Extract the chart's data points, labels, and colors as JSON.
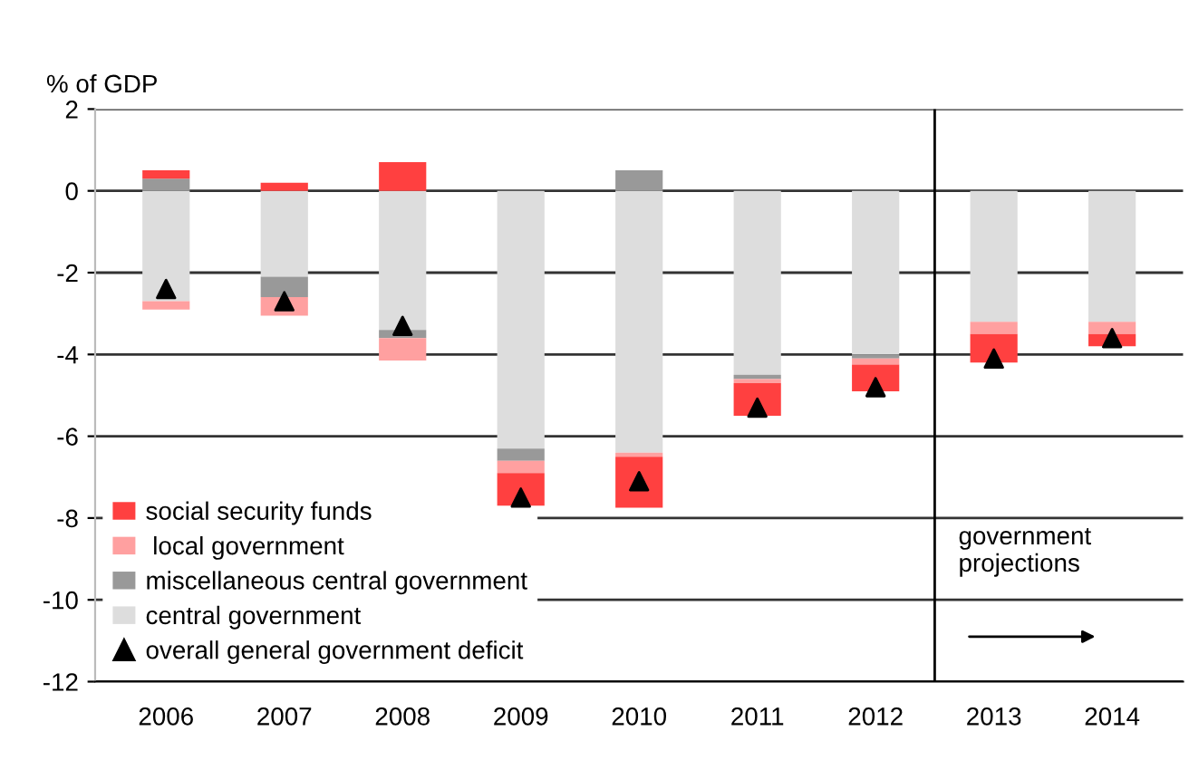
{
  "chart_data": {
    "type": "bar",
    "stacked": true,
    "ylabel": "% of GDP",
    "categories": [
      "2006",
      "2007",
      "2008",
      "2009",
      "2010",
      "2011",
      "2012",
      "2013",
      "2014"
    ],
    "series": [
      {
        "name": "central government",
        "color": "#dddddd",
        "values": [
          -2.7,
          -2.1,
          -3.4,
          -6.3,
          -6.4,
          -4.5,
          -4.0,
          -3.2,
          -3.2
        ]
      },
      {
        "name": "miscellaneous central government",
        "color": "#999999",
        "values": [
          0.3,
          -0.5,
          -0.2,
          -0.3,
          0.5,
          -0.1,
          -0.1,
          null,
          null
        ]
      },
      {
        "name": " local government",
        "color": "#ffa0a0",
        "values": [
          -0.2,
          -0.45,
          -0.55,
          -0.3,
          -0.1,
          -0.1,
          -0.15,
          -0.3,
          -0.3
        ]
      },
      {
        "name": "social security funds",
        "color": "#ff4040",
        "values": [
          0.2,
          0.2,
          0.7,
          -0.8,
          -1.25,
          -0.8,
          -0.65,
          -0.7,
          -0.3
        ]
      },
      {
        "name": "overall general government deficit",
        "type": "scatter",
        "marker": "triangle",
        "color": "#000000",
        "values": [
          -2.4,
          -2.7,
          -3.3,
          -7.5,
          -7.1,
          -5.3,
          -4.8,
          -4.1,
          -3.6
        ]
      }
    ],
    "ylim": [
      -12,
      2
    ],
    "yticks": [
      -12,
      -10,
      -8,
      -6,
      -4,
      -2,
      0,
      2
    ],
    "grid": "y",
    "legend": "bottom left",
    "ref_lines": [
      {
        "axis": "x",
        "value": "2013",
        "label": "government projections",
        "color": "#000000"
      }
    ]
  }
}
